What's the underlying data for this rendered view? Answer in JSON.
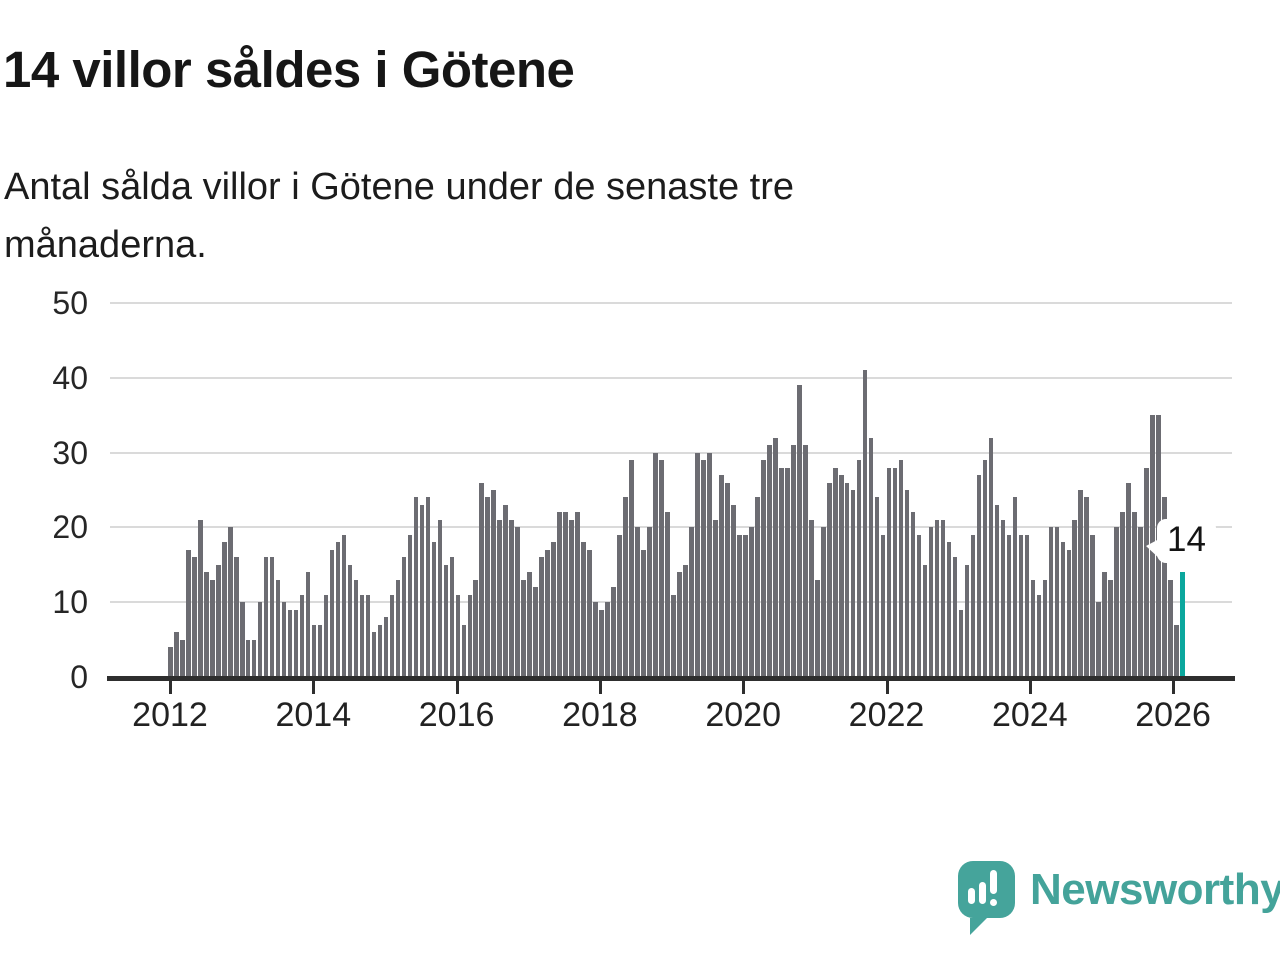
{
  "title": "14 villor såldes i Götene",
  "subtitle_lines": [
    "Antal sålda villor i Götene under de senaste tre",
    "månaderna."
  ],
  "annotation": {
    "label": "14"
  },
  "branding": {
    "name": "Newsworthy",
    "icon": "speech-bubble-bar-chart-icon",
    "color": "#45a49b"
  },
  "colors": {
    "bar": "#6c6c72",
    "highlight": "#0ba79d",
    "gridline": "#dadada",
    "axis": "#2e2e2e",
    "text": "#1c1c1c"
  },
  "chart_data": {
    "type": "bar",
    "title": "14 villor såldes i Götene",
    "subtitle": "Antal sålda villor i Götene under de senaste tre månaderna.",
    "x_start_year": 2012,
    "frequency": "monthly",
    "ylim": [
      0,
      50
    ],
    "y_ticks": [
      0,
      10,
      20,
      30,
      40,
      50
    ],
    "x_tick_years": [
      2012,
      2014,
      2016,
      2018,
      2020,
      2022,
      2024,
      2026
    ],
    "grid": "horizontal",
    "legend": "none",
    "highlight_index": 169,
    "highlight_value": 14,
    "values": [
      4,
      6,
      5,
      17,
      16,
      21,
      14,
      13,
      15,
      18,
      20,
      16,
      10,
      5,
      5,
      10,
      16,
      16,
      13,
      10,
      9,
      9,
      11,
      14,
      7,
      7,
      11,
      17,
      18,
      19,
      15,
      13,
      11,
      11,
      6,
      7,
      8,
      11,
      13,
      16,
      19,
      24,
      23,
      24,
      18,
      21,
      15,
      16,
      11,
      7,
      11,
      13,
      26,
      24,
      25,
      21,
      23,
      21,
      20,
      13,
      14,
      12,
      16,
      17,
      18,
      22,
      22,
      21,
      22,
      18,
      17,
      10,
      9,
      10,
      12,
      19,
      24,
      29,
      20,
      17,
      20,
      30,
      29,
      22,
      11,
      14,
      15,
      20,
      30,
      29,
      30,
      21,
      27,
      26,
      23,
      19,
      19,
      20,
      24,
      29,
      31,
      32,
      28,
      28,
      31,
      39,
      31,
      21,
      13,
      20,
      26,
      28,
      27,
      26,
      25,
      29,
      41,
      32,
      24,
      19,
      28,
      28,
      29,
      25,
      22,
      19,
      15,
      20,
      21,
      21,
      18,
      16,
      9,
      15,
      19,
      27,
      29,
      32,
      23,
      21,
      19,
      24,
      19,
      19,
      13,
      11,
      13,
      20,
      20,
      18,
      17,
      21,
      25,
      24,
      19,
      10,
      14,
      13,
      20,
      22,
      26,
      22,
      20,
      28,
      35,
      35,
      24,
      13,
      7,
      14
    ]
  }
}
